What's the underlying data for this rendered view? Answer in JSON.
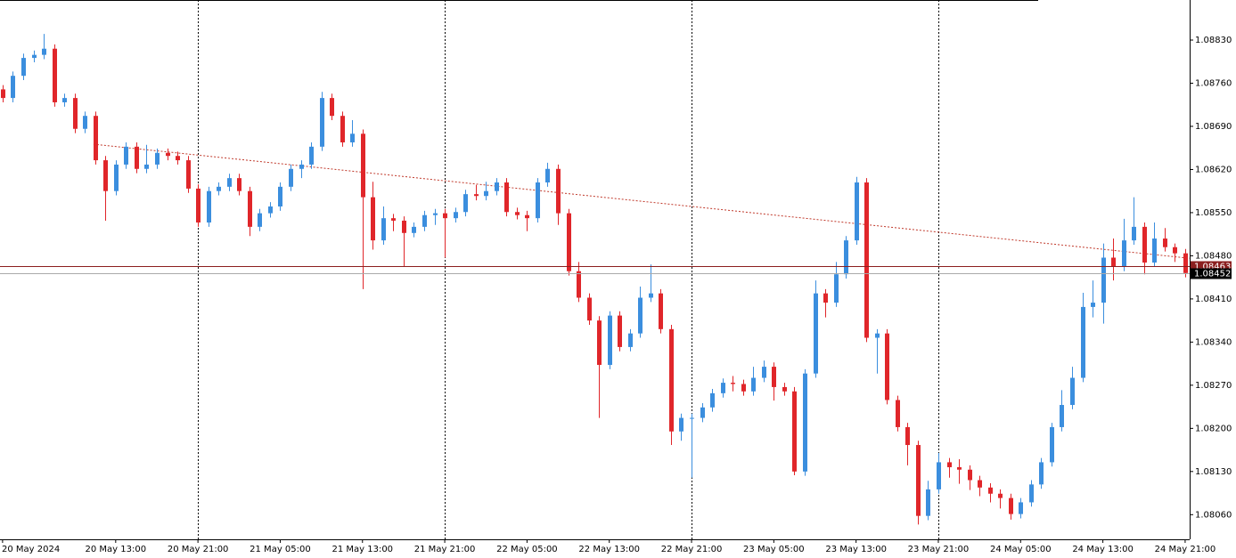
{
  "chart_data": {
    "type": "candlestick",
    "up_color": "#3b8ede",
    "down_color": "#e0262a",
    "open": [
      1.0875,
      1.08736,
      1.08772,
      1.08801,
      1.08806,
      1.08816,
      1.08729,
      1.08736,
      1.08686,
      1.08707,
      1.08635,
      1.08585,
      1.08628,
      1.08657,
      1.08621,
      1.08628,
      1.08647,
      1.08642,
      1.08635,
      1.08589,
      1.08534,
      1.08585,
      1.08592,
      1.08606,
      1.08585,
      1.08527,
      1.08549,
      1.0856,
      1.08592,
      1.08621,
      1.08628,
      1.08657,
      1.08736,
      1.08707,
      1.08664,
      1.08678,
      1.08575,
      1.08505,
      1.08541,
      1.08537,
      1.08517,
      1.08527,
      1.08546,
      1.08549,
      1.08541,
      1.08551,
      1.0858,
      1.08577,
      1.08585,
      1.08599,
      1.08551,
      1.08546,
      1.08541,
      1.08599,
      1.08621,
      1.08549,
      1.08455,
      1.08412,
      1.08375,
      1.08303,
      1.08383,
      1.08332,
      1.08354,
      1.08412,
      1.08419,
      1.08361,
      1.08195,
      1.08217,
      1.08217,
      1.08234,
      1.08257,
      1.08274,
      1.08272,
      1.0826,
      1.08282,
      1.083,
      1.08267,
      1.0826,
      1.0813,
      1.08289,
      1.08419,
      1.08404,
      1.0845,
      1.08505,
      1.08599,
      1.08347,
      1.08354,
      1.08246,
      1.08202,
      1.08173,
      1.08058,
      1.08101,
      1.08145,
      1.08137,
      1.08133,
      1.08116,
      1.08104,
      1.08094,
      1.08087,
      1.08061,
      1.0808,
      1.08109,
      1.08145,
      1.08202,
      1.08238,
      1.08282,
      1.08397,
      1.08404,
      1.08477,
      1.08462,
      1.08505,
      1.08527,
      1.08469,
      1.08508,
      1.08494,
      1.08484
    ],
    "high": [
      1.08757,
      1.08779,
      1.08808,
      1.08813,
      1.0884,
      1.08823,
      1.08743,
      1.08743,
      1.08714,
      1.08714,
      1.08642,
      1.08635,
      1.08664,
      1.08664,
      1.0866,
      1.08654,
      1.08654,
      1.08649,
      1.08642,
      1.08596,
      1.08592,
      1.08599,
      1.08613,
      1.08613,
      1.08592,
      1.08556,
      1.08567,
      1.08599,
      1.08628,
      1.08635,
      1.08664,
      1.08746,
      1.08743,
      1.08714,
      1.087,
      1.08685,
      1.086,
      1.0856,
      1.08548,
      1.08544,
      1.08534,
      1.08553,
      1.08556,
      1.08556,
      1.08558,
      1.08587,
      1.08595,
      1.086,
      1.08606,
      1.08606,
      1.08558,
      1.08553,
      1.08606,
      1.08631,
      1.08628,
      1.08556,
      1.0847,
      1.08419,
      1.08382,
      1.0839,
      1.0839,
      1.08361,
      1.0843,
      1.08466,
      1.08426,
      1.08368,
      1.08224,
      1.08224,
      1.08241,
      1.08264,
      1.08281,
      1.08285,
      1.08279,
      1.083,
      1.0831,
      1.08307,
      1.08274,
      1.08267,
      1.08296,
      1.0844,
      1.08426,
      1.0847,
      1.08512,
      1.08608,
      1.08606,
      1.08361,
      1.08361,
      1.08253,
      1.08209,
      1.0818,
      1.08115,
      1.0816,
      1.08152,
      1.0815,
      1.0814,
      1.08123,
      1.08111,
      1.08101,
      1.08094,
      1.08087,
      1.08116,
      1.08152,
      1.08209,
      1.08262,
      1.083,
      1.0842,
      1.0844,
      1.085,
      1.08508,
      1.0854,
      1.08575,
      1.08534,
      1.08534,
      1.08525,
      1.085,
      1.08491
    ],
    "low": [
      1.08729,
      1.08729,
      1.08765,
      1.08794,
      1.08799,
      1.08722,
      1.08722,
      1.08679,
      1.08679,
      1.08628,
      1.08537,
      1.08578,
      1.08621,
      1.08614,
      1.08614,
      1.08621,
      1.08635,
      1.08628,
      1.08582,
      1.08527,
      1.08527,
      1.08578,
      1.08585,
      1.08578,
      1.08512,
      1.0852,
      1.08542,
      1.08553,
      1.08585,
      1.08606,
      1.08621,
      1.0865,
      1.087,
      1.08657,
      1.08657,
      1.08426,
      1.0849,
      1.08498,
      1.0852,
      1.08462,
      1.0851,
      1.0852,
      1.0853,
      1.08477,
      1.08534,
      1.08544,
      1.0857,
      1.0857,
      1.08578,
      1.08544,
      1.08539,
      1.0852,
      1.08534,
      1.08592,
      1.0853,
      1.08448,
      1.08405,
      1.08368,
      1.08217,
      1.08296,
      1.08325,
      1.08325,
      1.08347,
      1.08405,
      1.08354,
      1.08173,
      1.0818,
      1.0812,
      1.0821,
      1.08227,
      1.0825,
      1.0826,
      1.08253,
      1.08253,
      1.08275,
      1.08245,
      1.08253,
      1.08124,
      1.08123,
      1.08282,
      1.0838,
      1.08397,
      1.08443,
      1.08498,
      1.0834,
      1.08289,
      1.08239,
      1.08195,
      1.0814,
      1.08044,
      1.08051,
      1.08094,
      1.0812,
      1.0811,
      1.081,
      1.0809,
      1.0808,
      1.0807,
      1.08052,
      1.08054,
      1.08073,
      1.08102,
      1.08138,
      1.08195,
      1.08231,
      1.08275,
      1.0838,
      1.0837,
      1.0844,
      1.08455,
      1.08498,
      1.0845,
      1.08462,
      1.08487,
      1.0847,
      1.08445
    ],
    "close": [
      1.08736,
      1.08772,
      1.08801,
      1.08806,
      1.08816,
      1.08729,
      1.08736,
      1.08686,
      1.08707,
      1.08635,
      1.08585,
      1.08628,
      1.08657,
      1.08621,
      1.08628,
      1.08647,
      1.08642,
      1.08635,
      1.08589,
      1.08534,
      1.08585,
      1.08592,
      1.08606,
      1.08585,
      1.08527,
      1.08549,
      1.0856,
      1.08592,
      1.08621,
      1.08628,
      1.08657,
      1.08736,
      1.08707,
      1.08664,
      1.08678,
      1.08575,
      1.08505,
      1.08541,
      1.08537,
      1.08517,
      1.08527,
      1.08546,
      1.08549,
      1.08541,
      1.08551,
      1.0858,
      1.08577,
      1.08585,
      1.08599,
      1.08551,
      1.08546,
      1.08541,
      1.08599,
      1.08621,
      1.08549,
      1.08455,
      1.08412,
      1.08375,
      1.08303,
      1.08383,
      1.08332,
      1.08354,
      1.08412,
      1.08419,
      1.08361,
      1.08195,
      1.08217,
      1.08217,
      1.08234,
      1.08257,
      1.08274,
      1.08272,
      1.0826,
      1.08282,
      1.083,
      1.08267,
      1.0826,
      1.0813,
      1.08289,
      1.08419,
      1.08404,
      1.0845,
      1.08505,
      1.08599,
      1.08347,
      1.08354,
      1.08246,
      1.08202,
      1.08173,
      1.08058,
      1.08101,
      1.08145,
      1.08137,
      1.08133,
      1.08116,
      1.08104,
      1.08094,
      1.08087,
      1.08061,
      1.0808,
      1.08109,
      1.08145,
      1.08202,
      1.08238,
      1.08282,
      1.08397,
      1.08404,
      1.08477,
      1.08462,
      1.08505,
      1.08527,
      1.08469,
      1.08508,
      1.08494,
      1.08484,
      1.08452
    ],
    "xlim": [
      -0.25,
      115.44
    ],
    "xticks": [
      {
        "value": 0,
        "label": "20 May 2024"
      },
      {
        "value": 11,
        "label": "20 May 13:00"
      },
      {
        "value": 19,
        "label": "20 May 21:00"
      },
      {
        "value": 27,
        "label": "21 May 05:00"
      },
      {
        "value": 35,
        "label": "21 May 13:00"
      },
      {
        "value": 43,
        "label": "21 May 21:00"
      },
      {
        "value": 51,
        "label": "22 May 05:00"
      },
      {
        "value": 59,
        "label": "22 May 13:00"
      },
      {
        "value": 67,
        "label": "22 May 21:00"
      },
      {
        "value": 75,
        "label": "23 May 05:00"
      },
      {
        "value": 83,
        "label": "23 May 13:00"
      },
      {
        "value": 91,
        "label": "23 May 21:00"
      },
      {
        "value": 99,
        "label": "24 May 05:00"
      },
      {
        "value": 107,
        "label": "24 May 13:00"
      },
      {
        "value": 115,
        "label": "24 May 21:00"
      }
    ],
    "separators": [
      19,
      43,
      67,
      91
    ],
    "ylim": [
      1.0802,
      1.08895
    ],
    "yticks": [
      {
        "value": 1.0883,
        "label": "1.08830"
      },
      {
        "value": 1.0876,
        "label": "1.08760"
      },
      {
        "value": 1.0869,
        "label": "1.08690"
      },
      {
        "value": 1.0862,
        "label": "1.08620"
      },
      {
        "value": 1.0855,
        "label": "1.08550"
      },
      {
        "value": 1.0848,
        "label": "1.08480"
      },
      {
        "value": 1.0841,
        "label": "1.08410"
      },
      {
        "value": 1.0834,
        "label": "1.08340"
      },
      {
        "value": 1.0827,
        "label": "1.08270"
      },
      {
        "value": 1.082,
        "label": "1.08200"
      },
      {
        "value": 1.0813,
        "label": "1.08130"
      },
      {
        "value": 1.0806,
        "label": "1.08060"
      }
    ],
    "trendline": {
      "color": "#c0392b",
      "x": [
        8.84,
        115.4
      ],
      "y": [
        1.08661,
        1.08476
      ]
    },
    "price_lines": [
      {
        "value": 1.08463,
        "label": "1.08463",
        "color": "#8b1f1f"
      },
      {
        "value": 1.08452,
        "label": "1.08452",
        "color": "#000000"
      }
    ]
  }
}
